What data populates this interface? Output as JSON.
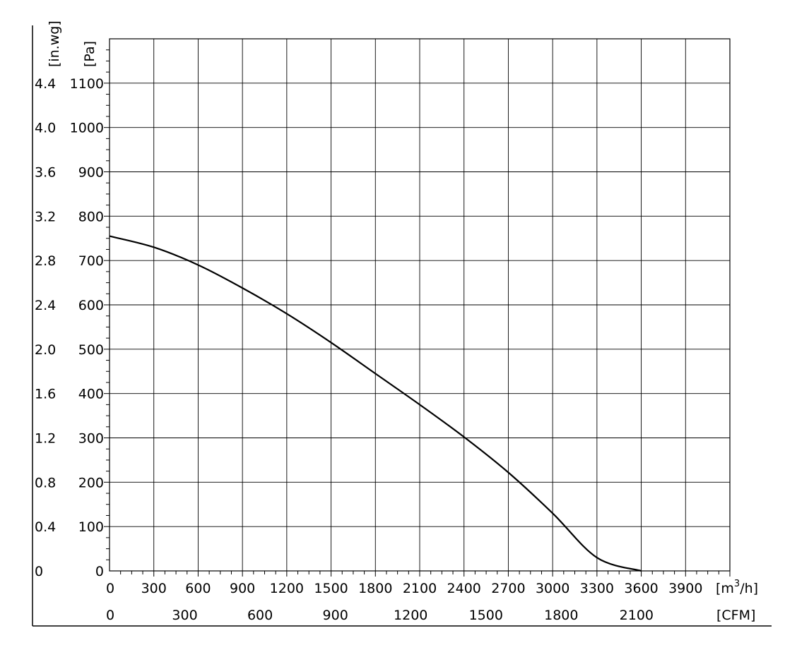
{
  "chart_data": {
    "type": "line",
    "title": "",
    "x_primary": {
      "unit": "[m³/h]",
      "unit_base": "[m",
      "unit_sup": "3",
      "unit_tail": "/h]",
      "range": [
        0,
        4200
      ],
      "ticks": [
        "0",
        "300",
        "600",
        "900",
        "1200",
        "1500",
        "1800",
        "2100",
        "2400",
        "2700",
        "3000",
        "3300",
        "3600",
        "3900"
      ]
    },
    "x_secondary": {
      "unit": "[CFM]",
      "ticks": [
        "0",
        "300",
        "600",
        "900",
        "1200",
        "1500",
        "1800",
        "2100"
      ]
    },
    "y_primary": {
      "unit": "[Pa]",
      "range": [
        0,
        1200
      ],
      "ticks": [
        "0",
        "100",
        "200",
        "300",
        "400",
        "500",
        "600",
        "700",
        "800",
        "900",
        "1000",
        "1100"
      ]
    },
    "y_secondary": {
      "unit": "[in.wg]",
      "ticks": [
        "0",
        "0.4",
        "0.8",
        "1.2",
        "1.6",
        "2.0",
        "2.4",
        "2.8",
        "3.2",
        "3.6",
        "4.0",
        "4.4"
      ]
    },
    "grid": true,
    "series": [
      {
        "x": [
          0,
          300,
          600,
          900,
          1200,
          1500,
          1800,
          2100,
          2400,
          2700,
          3000,
          3300,
          3600
        ],
        "y": [
          755,
          730,
          690,
          638,
          580,
          515,
          445,
          375,
          302,
          222,
          130,
          30,
          0
        ]
      }
    ]
  }
}
